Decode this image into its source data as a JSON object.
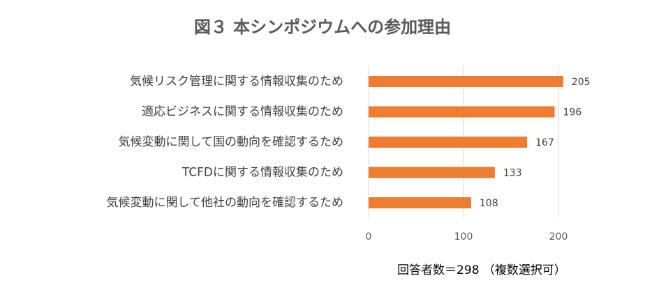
{
  "chart_data": {
    "type": "bar",
    "orientation": "horizontal",
    "title": "図３ 本シンポジウムへの参加理由",
    "categories": [
      "気候リスク管理に関する情報収集のため",
      "適応ビジネスに関する情報収集のため",
      "気候変動に関して国の動向を確認するため",
      "TCFDに関する情報収集のため",
      "気候変動に関して他社の動向を確認するため"
    ],
    "values": [
      205,
      196,
      167,
      133,
      108
    ],
    "color": "#ed7d31",
    "xlim": [
      0,
      200
    ],
    "xticks": [
      0,
      100,
      200
    ],
    "grid": true,
    "note": "回答者数＝298 （複数選択可）"
  }
}
